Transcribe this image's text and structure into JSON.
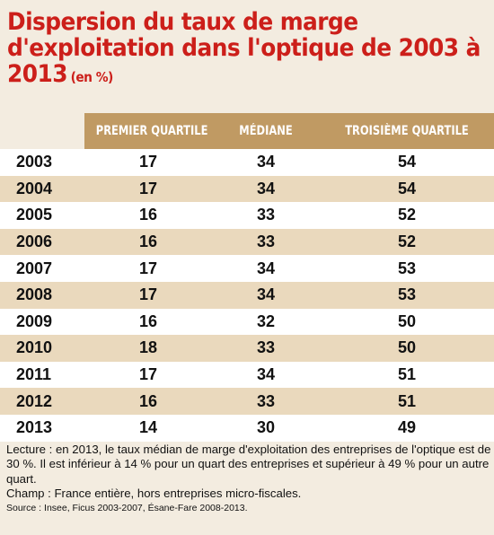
{
  "title": "Dispersion du taux de marge\nd'exploitation dans l'optique de 2003 à\n2013",
  "unit": "(en %)",
  "colors": {
    "title": "#cc1f1a",
    "header_bar": "#c09a63",
    "row_even": "#ead9bd",
    "row_odd": "#ffffff",
    "background": "#f3ece0"
  },
  "chart_data": {
    "type": "table",
    "title": "Dispersion du taux de marge d'exploitation dans l'optique de 2003 à 2013",
    "unit": "(en %)",
    "columns": [
      "",
      "PREMIER QUARTILE",
      "MÉDIANE",
      "TROISIÈME QUARTILE"
    ],
    "rows": [
      [
        "2003",
        "17",
        "34",
        "54"
      ],
      [
        "2004",
        "17",
        "34",
        "54"
      ],
      [
        "2005",
        "16",
        "33",
        "52"
      ],
      [
        "2006",
        "16",
        "33",
        "52"
      ],
      [
        "2007",
        "17",
        "34",
        "53"
      ],
      [
        "2008",
        "17",
        "34",
        "53"
      ],
      [
        "2009",
        "16",
        "32",
        "50"
      ],
      [
        "2010",
        "18",
        "33",
        "50"
      ],
      [
        "2011",
        "17",
        "34",
        "51"
      ],
      [
        "2012",
        "16",
        "33",
        "51"
      ],
      [
        "2013",
        "14",
        "30",
        "49"
      ]
    ]
  },
  "notes": {
    "lecture": "Lecture : en 2013, le taux médian de marge d'exploitation des entreprises de l'optique est de 30 %. Il est inférieur à 14 % pour un quart des entreprises et supérieur à 49 % pour un autre quart.",
    "champ": "Champ : France entière, hors entreprises micro-fiscales.",
    "source": "Source : Insee, Ficus 2003-2007, Ésane-Fare 2008-2013."
  }
}
